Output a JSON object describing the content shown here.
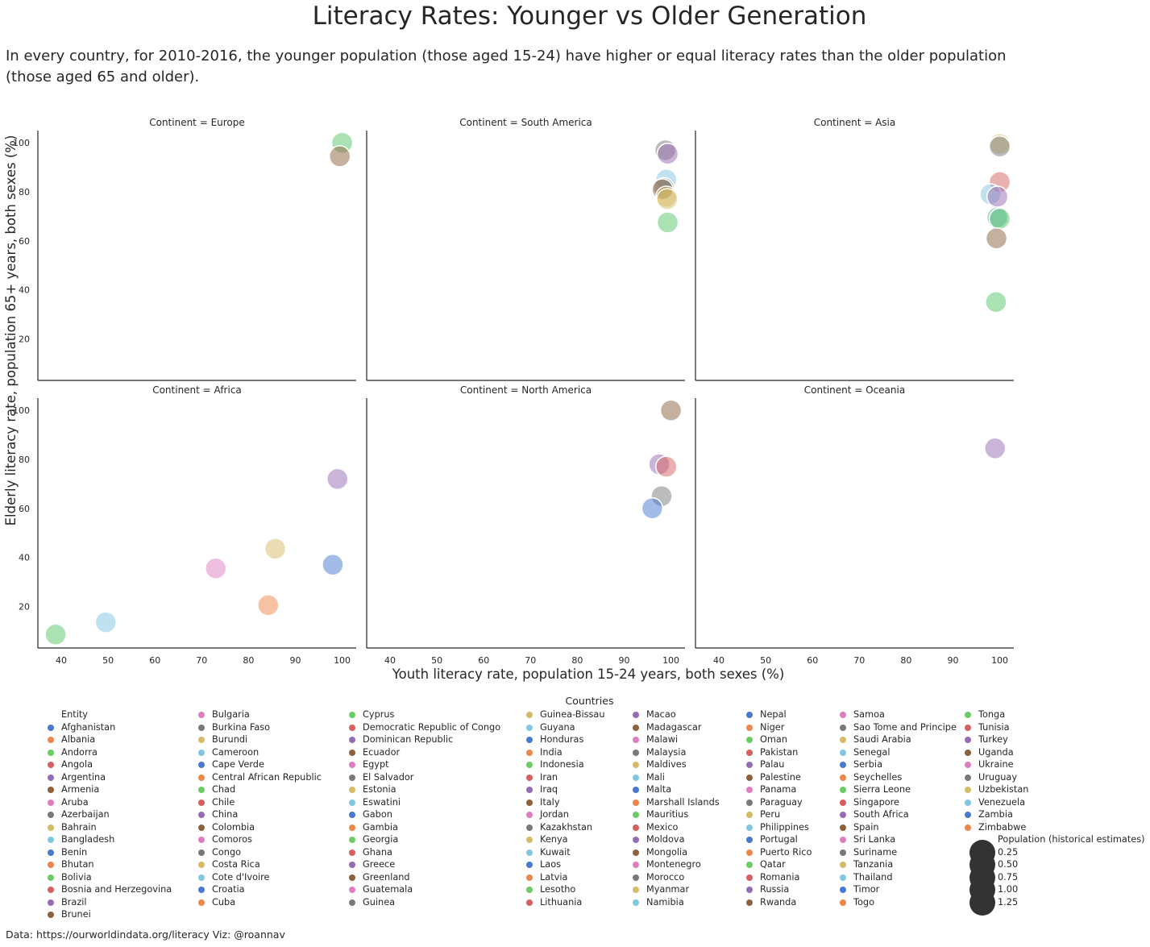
{
  "title": "Literacy Rates: Younger vs Older Generation",
  "subtitle": "In every country, for 2010-2016, the younger population (those aged 15-24) have higher or equal literacy rates than the older population (those aged 65 and older).",
  "footer": "Data: https://ourworldindata.org/literacy   Viz: @roannav",
  "chart_data": {
    "type": "scatter",
    "xlabel": "Youth literacy rate, population 15-24 years, both sexes (%)",
    "ylabel": "Elderly literacy rate, population 65+ years, both sexes (%)",
    "xlim": [
      35,
      103
    ],
    "ylim": [
      3,
      105
    ],
    "xticks": [
      40,
      50,
      60,
      70,
      80,
      90,
      100
    ],
    "yticks": [
      20,
      40,
      60,
      80,
      100
    ],
    "panels": [
      {
        "title": "Continent = Europe",
        "points": [
          {
            "x": 100,
            "y": 100,
            "color": "#55c667"
          },
          {
            "x": 99.5,
            "y": 94.5,
            "color": "#8c613c"
          }
        ]
      },
      {
        "title": "Continent = South America",
        "points": [
          {
            "x": 98.8,
            "y": 97,
            "color": "#797979"
          },
          {
            "x": 99.3,
            "y": 95.5,
            "color": "#956cb4"
          },
          {
            "x": 99,
            "y": 85,
            "color": "#82c6e2"
          },
          {
            "x": 98.5,
            "y": 81.5,
            "color": "#797979"
          },
          {
            "x": 98.2,
            "y": 81,
            "color": "#8c613c"
          },
          {
            "x": 99,
            "y": 78,
            "color": "#d5bb67"
          },
          {
            "x": 99.2,
            "y": 77,
            "color": "#d5bb67"
          },
          {
            "x": 99.3,
            "y": 67.5,
            "color": "#55c667"
          }
        ]
      },
      {
        "title": "Continent = Asia",
        "points": [
          {
            "x": 100,
            "y": 99.5,
            "color": "#d5bb67"
          },
          {
            "x": 100,
            "y": 98.5,
            "color": "#797979"
          },
          {
            "x": 100,
            "y": 84,
            "color": "#d65f5f"
          },
          {
            "x": 98,
            "y": 79,
            "color": "#82c6e2"
          },
          {
            "x": 99.5,
            "y": 78,
            "color": "#956cb4"
          },
          {
            "x": 99.5,
            "y": 69.5,
            "color": "#4aa3a3"
          },
          {
            "x": 100,
            "y": 69,
            "color": "#55c667"
          },
          {
            "x": 99.3,
            "y": 61,
            "color": "#8c613c"
          },
          {
            "x": 99.2,
            "y": 35,
            "color": "#55c667"
          }
        ]
      },
      {
        "title": "Continent = Africa",
        "points": [
          {
            "x": 99,
            "y": 72,
            "color": "#956cb4"
          },
          {
            "x": 85.7,
            "y": 43.5,
            "color": "#d5bb67"
          },
          {
            "x": 98,
            "y": 37,
            "color": "#4878d0"
          },
          {
            "x": 73,
            "y": 35.5,
            "color": "#dc7ec0"
          },
          {
            "x": 84.2,
            "y": 20.5,
            "color": "#ee854a"
          },
          {
            "x": 49.5,
            "y": 13.5,
            "color": "#82c6e2"
          },
          {
            "x": 38.8,
            "y": 8.5,
            "color": "#55c667"
          }
        ]
      },
      {
        "title": "Continent = North America",
        "points": [
          {
            "x": 100,
            "y": 100,
            "color": "#8c613c"
          },
          {
            "x": 97.5,
            "y": 78,
            "color": "#956cb4"
          },
          {
            "x": 99,
            "y": 77,
            "color": "#d65f5f"
          },
          {
            "x": 98,
            "y": 65,
            "color": "#797979"
          },
          {
            "x": 96,
            "y": 60,
            "color": "#4878d0"
          }
        ]
      },
      {
        "title": "Continent = Oceania",
        "points": [
          {
            "x": 99,
            "y": 84.5,
            "color": "#956cb4"
          }
        ]
      }
    ]
  },
  "legend": {
    "title": "Countries",
    "header": "Entity",
    "columns": [
      [
        "Afghanistan",
        "Albania",
        "Andorra",
        "Angola",
        "Argentina",
        "Armenia",
        "Aruba",
        "Azerbaijan",
        "Bahrain",
        "Bangladesh",
        "Benin",
        "Bhutan",
        "Bolivia",
        "Bosnia and Herzegovina",
        "Brazil",
        "Brunei"
      ],
      [
        "Bulgaria",
        "Burkina Faso",
        "Burundi",
        "Cameroon",
        "Cape Verde",
        "Central African Republic",
        "Chad",
        "Chile",
        "China",
        "Colombia",
        "Comoros",
        "Congo",
        "Costa Rica",
        "Cote d'Ivoire",
        "Croatia",
        "Cuba"
      ],
      [
        "Cyprus",
        "Democratic Republic of Congo",
        "Dominican Republic",
        "Ecuador",
        "Egypt",
        "El Salvador",
        "Estonia",
        "Eswatini",
        "Gabon",
        "Gambia",
        "Georgia",
        "Ghana",
        "Greece",
        "Greenland",
        "Guatemala",
        "Guinea"
      ],
      [
        "Guinea-Bissau",
        "Guyana",
        "Honduras",
        "India",
        "Indonesia",
        "Iran",
        "Iraq",
        "Italy",
        "Jordan",
        "Kazakhstan",
        "Kenya",
        "Kuwait",
        "Laos",
        "Latvia",
        "Lesotho",
        "Lithuania"
      ],
      [
        "Macao",
        "Madagascar",
        "Malawi",
        "Malaysia",
        "Maldives",
        "Mali",
        "Malta",
        "Marshall Islands",
        "Mauritius",
        "Mexico",
        "Moldova",
        "Mongolia",
        "Montenegro",
        "Morocco",
        "Myanmar",
        "Namibia"
      ],
      [
        "Nepal",
        "Niger",
        "Oman",
        "Pakistan",
        "Palau",
        "Palestine",
        "Panama",
        "Paraguay",
        "Peru",
        "Philippines",
        "Portugal",
        "Puerto Rico",
        "Qatar",
        "Romania",
        "Russia",
        "Rwanda"
      ],
      [
        "Samoa",
        "Sao Tome and Principe",
        "Saudi Arabia",
        "Senegal",
        "Serbia",
        "Seychelles",
        "Sierra Leone",
        "Singapore",
        "South Africa",
        "Spain",
        "Sri Lanka",
        "Suriname",
        "Tanzania",
        "Thailand",
        "Timor",
        "Togo"
      ],
      [
        "Tonga",
        "Tunisia",
        "Turkey",
        "Uganda",
        "Ukraine",
        "Uruguay",
        "Uzbekistan",
        "Venezuela",
        "Zambia",
        "Zimbabwe"
      ]
    ],
    "palette": [
      "#4878d0",
      "#ee854a",
      "#6acc64",
      "#d65f5f",
      "#956cb4",
      "#8c613c",
      "#dc7ec0",
      "#797979",
      "#d5bb67",
      "#82c6e2"
    ],
    "size_title": "Population (historical estimates)",
    "size_items": [
      "0.25",
      "0.50",
      "0.75",
      "1.00",
      "1.25"
    ]
  }
}
